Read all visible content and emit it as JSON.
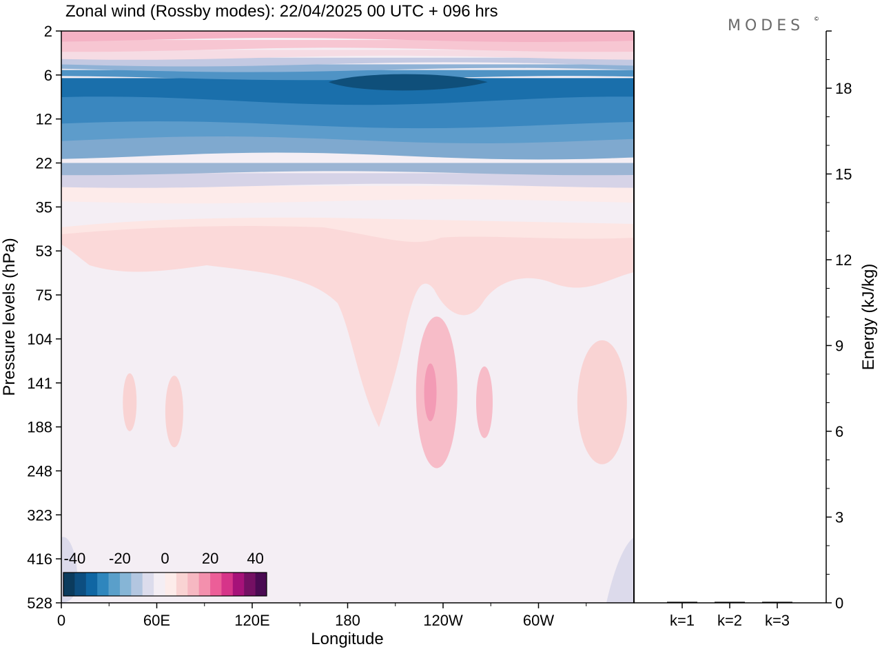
{
  "brand": {
    "name": "MODES",
    "mark": "©"
  },
  "chart_data": [
    {
      "type": "heatmap",
      "title": "Zonal wind (Rossby modes):  22/04/2025  00 UTC  + 096 hrs",
      "xlabel": "Longitude",
      "ylabel": "Pressure levels (hPa)",
      "x_ticks": [
        "0",
        "60E",
        "120E",
        "180",
        "120W",
        "60W"
      ],
      "x_tick_lon": [
        0,
        60,
        120,
        180,
        240,
        300
      ],
      "xlim": [
        0,
        360
      ],
      "y_ticks": [
        "2",
        "6",
        "12",
        "22",
        "35",
        "53",
        "75",
        "104",
        "141",
        "188",
        "248",
        "323",
        "416",
        "528"
      ],
      "colorbar": {
        "labels": [
          "-40",
          "-20",
          "0",
          "20",
          "40"
        ],
        "label_values": [
          -40,
          -20,
          0,
          20,
          40
        ],
        "range": [
          -45,
          45
        ],
        "colors": [
          "#0b3b5d",
          "#0d4e80",
          "#1066a3",
          "#2f86bd",
          "#5a9fca",
          "#86b5d6",
          "#b3c6e0",
          "#dcdcec",
          "#f4eef4",
          "#fdecea",
          "#f9d3d3",
          "#f6b8c2",
          "#f390ad",
          "#ec5e98",
          "#d63489",
          "#a61279",
          "#741063",
          "#4a0a52"
        ]
      },
      "bands": [
        {
          "value": -15,
          "color": "#9cb5d4",
          "y_top": 22,
          "y_bottom": 24.5,
          "profile": "high"
        },
        {
          "value": -17,
          "color": "#7fa9cf",
          "y_top": 14,
          "y_bottom": 20,
          "profile": "mid"
        },
        {
          "value": -22,
          "color": "#5d9ccb",
          "y_top": 11,
          "y_bottom": 16,
          "profile": "mid"
        },
        {
          "value": -27,
          "color": "#3a87bf",
          "y_top": 8.3,
          "y_bottom": 13,
          "profile": "mid"
        },
        {
          "value": -33,
          "color": "#1a6fab",
          "y_top": 6.3,
          "y_bottom": 9,
          "profile": "wave"
        },
        {
          "value": -10,
          "color": "#d6d3e7",
          "y_top": 24.5,
          "y_bottom": 28,
          "profile": "high"
        },
        {
          "value": 2,
          "color": "#fdebea",
          "y_top": 28,
          "y_bottom": 33,
          "profile": "high"
        },
        {
          "value": -22,
          "color": "#4f93c5",
          "y_top": 5.3,
          "y_bottom": 6.3,
          "profile": "high"
        },
        {
          "value": -10,
          "color": "#8fb2d6",
          "y_top": 4.6,
          "y_bottom": 5.3,
          "profile": "high"
        },
        {
          "value": -5,
          "color": "#c3c9e2",
          "y_top": 3.9,
          "y_bottom": 4.6,
          "profile": "high"
        },
        {
          "value": 5,
          "color": "#f6dce4",
          "y_top": 3.2,
          "y_bottom": 3.9,
          "profile": "high"
        },
        {
          "value": 12,
          "color": "#f7c6d2",
          "y_top": 2.5,
          "y_bottom": 3.2,
          "profile": "high"
        },
        {
          "value": 15,
          "color": "#f4b2c4",
          "y_top": 2,
          "y_bottom": 2.5,
          "profile": "high"
        }
      ],
      "max_wind_core": {
        "lon_range": [
          168,
          268
        ],
        "level_range": [
          6,
          7.5
        ],
        "color": "#0f4f7a",
        "value": -38
      },
      "mid_lobes": [
        {
          "name": "pink-core-1",
          "lon_center": 232,
          "level_center": 150,
          "color": "#f39bb5",
          "value": 15
        },
        {
          "name": "pink-ring-1",
          "lon_center": 236,
          "level_center": 150,
          "color": "#f7bcc8",
          "value": 10
        },
        {
          "name": "pink-lobe-2",
          "lon_center": 266,
          "level_center": 160,
          "color": "#f7bcc8",
          "value": 10
        },
        {
          "name": "light-lobe-w1",
          "lon_center": 43,
          "level_center": 160,
          "color": "#f9d3d3",
          "value": 5
        },
        {
          "name": "light-lobe-w2",
          "lon_center": 71,
          "level_center": 170,
          "color": "#f9d3d3",
          "value": 5
        },
        {
          "name": "light-lobe-e",
          "lon_center": 340,
          "level_center": 160,
          "color": "#f9d3d3",
          "value": 5
        }
      ]
    },
    {
      "type": "bar",
      "ylabel": "Energy (kJ/kg)",
      "categories": [
        "k=1",
        "k=2",
        "k=3"
      ],
      "values": [
        0.02,
        0.01,
        0.01
      ],
      "ylim": [
        0,
        20
      ],
      "y_ticks": [
        0,
        3,
        6,
        9,
        12,
        15,
        18
      ]
    }
  ]
}
